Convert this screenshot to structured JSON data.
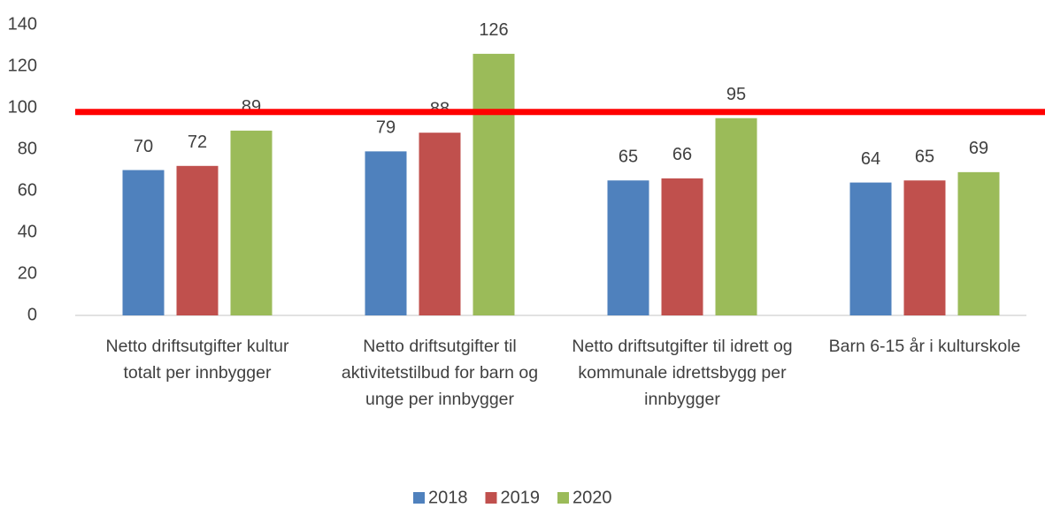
{
  "chart_data": {
    "type": "bar",
    "categories": [
      "Netto driftsutgifter kultur totalt per innbygger",
      "Netto driftsutgifter til aktivitetstilbud for barn og unge per innbygger",
      "Netto driftsutgifter til idrett og kommunale idrettsbygg per innbygger",
      "Barn 6-15 år i kulturskole"
    ],
    "series": [
      {
        "name": "2018",
        "color": "#4f81bd",
        "values": [
          70,
          79,
          65,
          64
        ]
      },
      {
        "name": "2019",
        "color": "#c0504d",
        "values": [
          72,
          88,
          66,
          65
        ]
      },
      {
        "name": "2020",
        "color": "#9bbb59",
        "values": [
          89,
          126,
          95,
          69
        ]
      }
    ],
    "ylim": [
      0,
      140
    ],
    "yticks": [
      0,
      20,
      40,
      60,
      80,
      100,
      120,
      140
    ],
    "reference_line": {
      "value": 98,
      "color": "#ff0000"
    },
    "legend": "bottom"
  }
}
